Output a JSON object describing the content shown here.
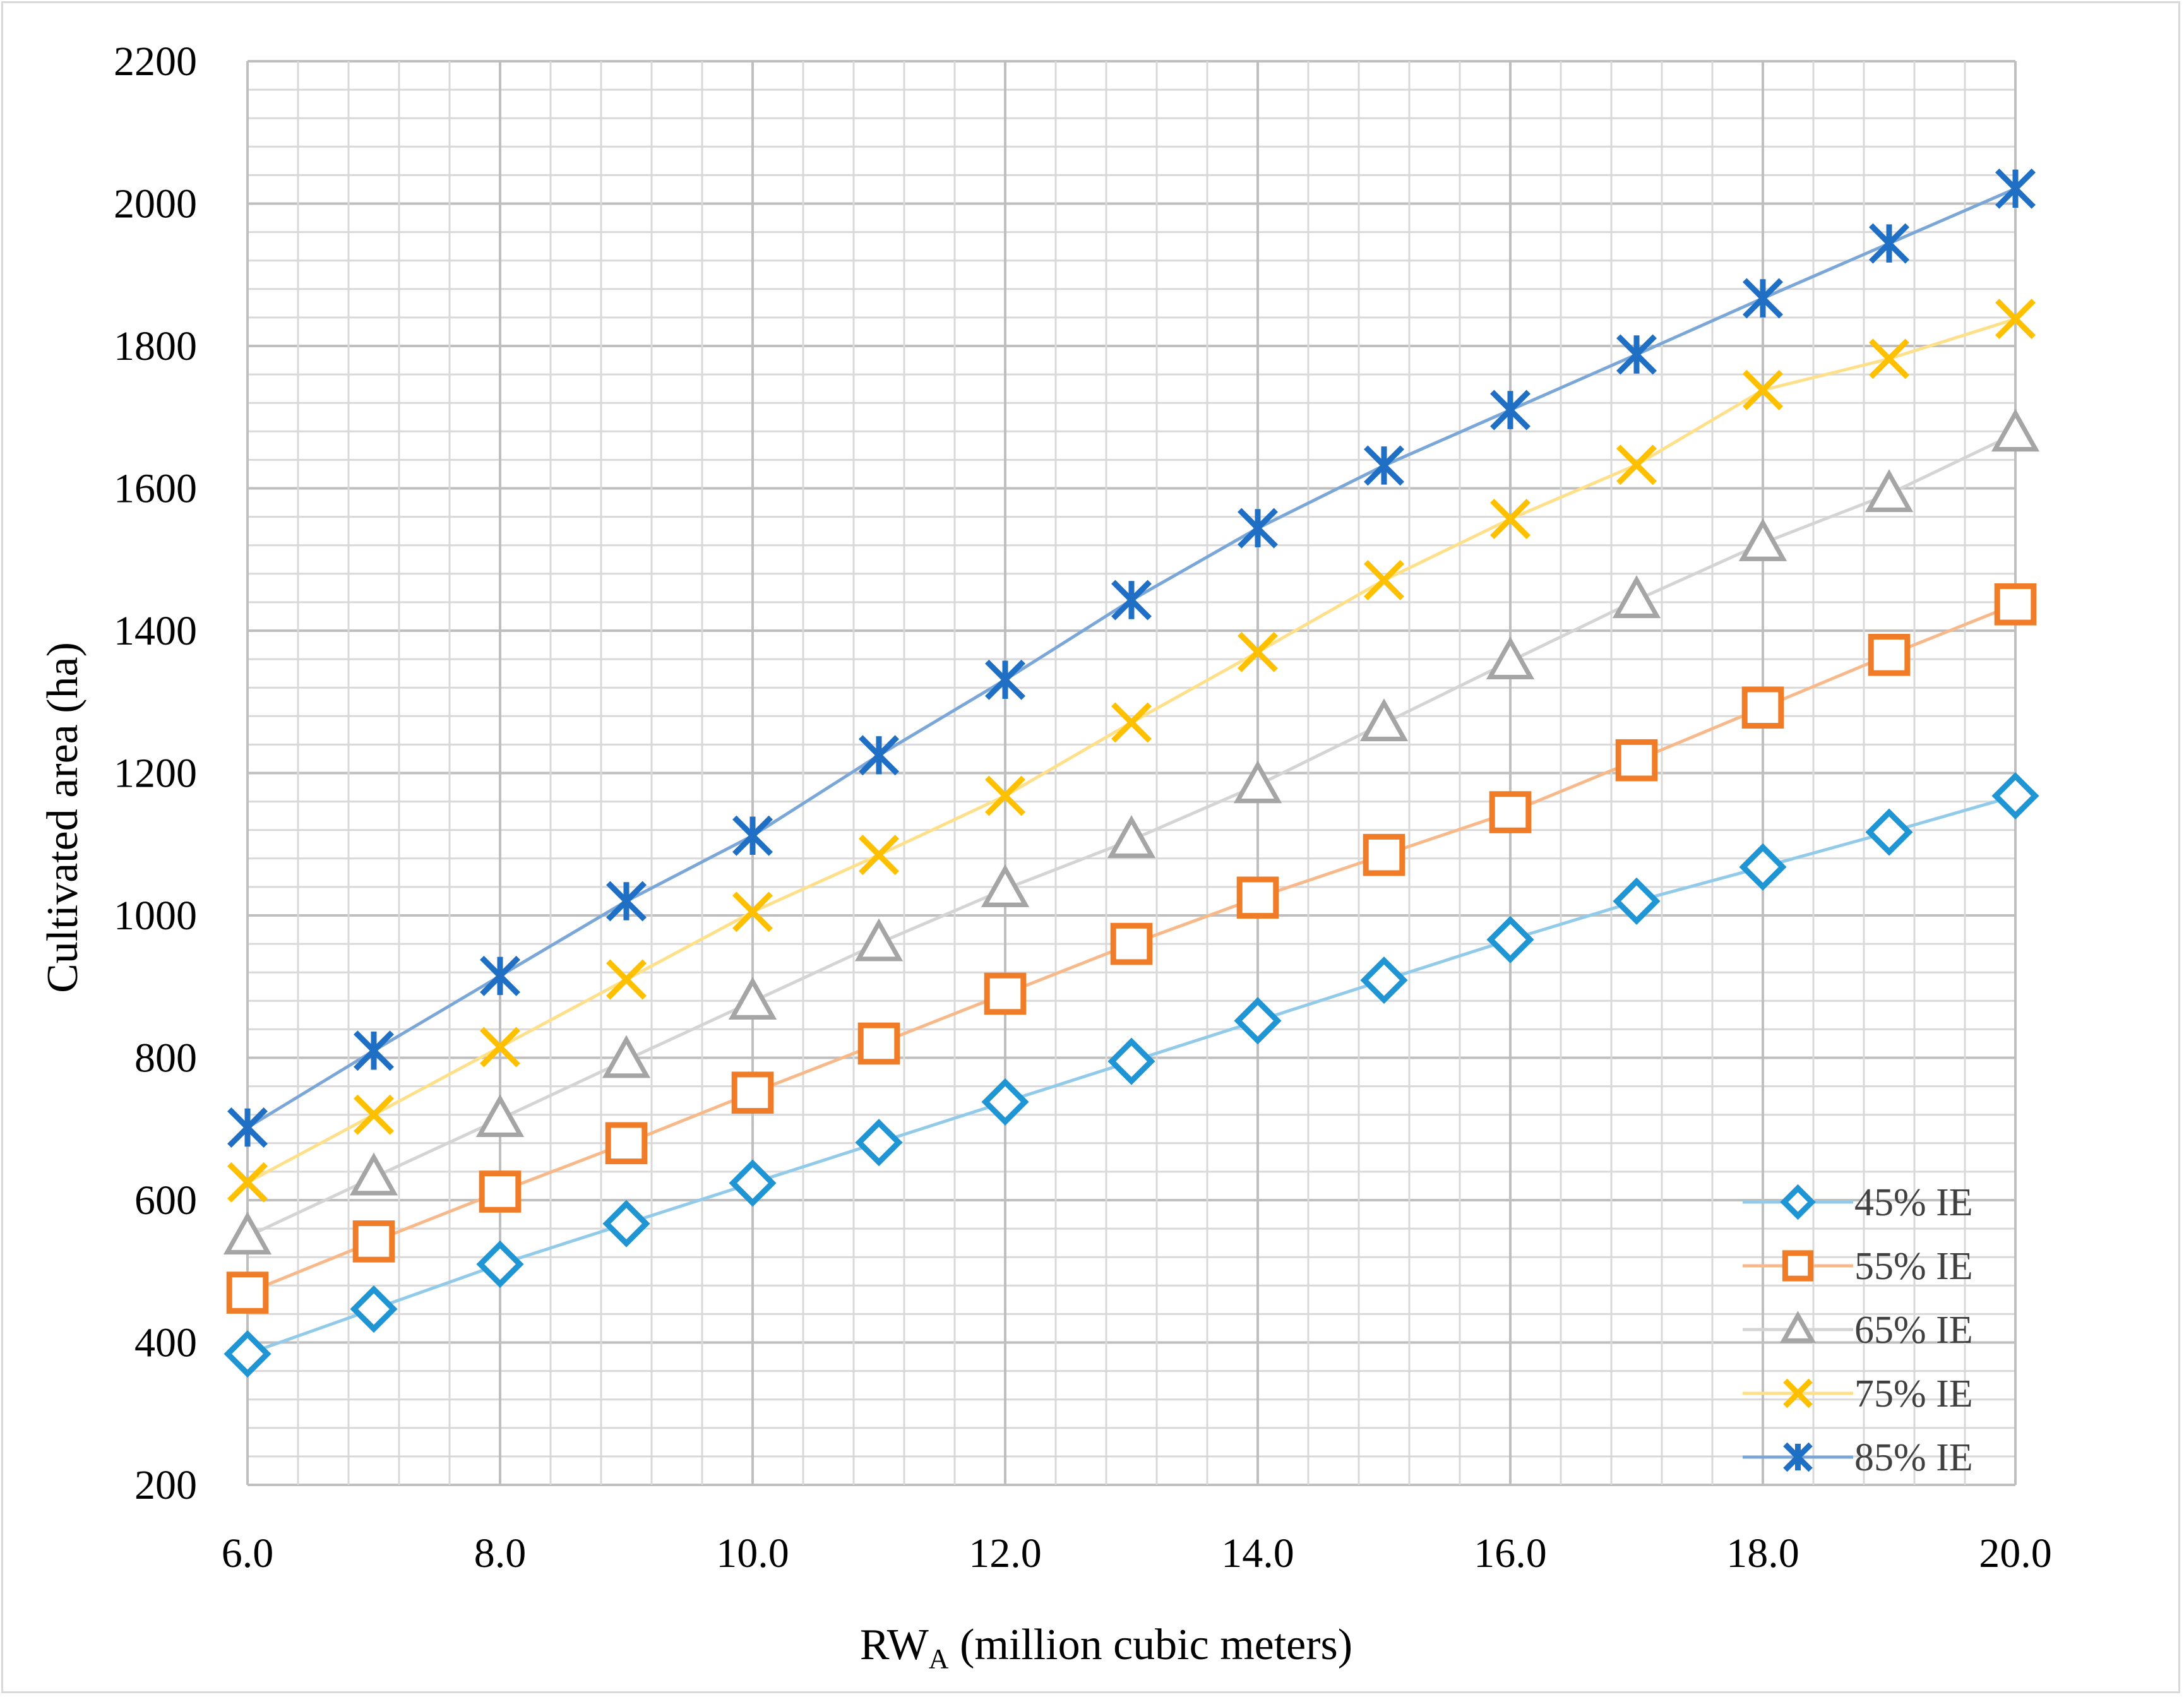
{
  "chart_data": {
    "type": "line",
    "title": "",
    "xlabel": "RW",
    "xlabel_subscript": "A",
    "xlabel_suffix": " (million cubic meters)",
    "ylabel": "Cultivated area (ha)",
    "xlim": [
      6,
      20
    ],
    "ylim": [
      200,
      2200
    ],
    "x_ticks": [
      6,
      8,
      10,
      12,
      14,
      16,
      18,
      20
    ],
    "x_tick_labels": [
      "6.0",
      "8.0",
      "10.0",
      "12.0",
      "14.0",
      "16.0",
      "18.0",
      "20.0"
    ],
    "y_ticks": [
      200,
      400,
      600,
      800,
      1000,
      1200,
      1400,
      1600,
      1800,
      2000,
      2200
    ],
    "y_tick_labels": [
      "200",
      "400",
      "600",
      "800",
      "1000",
      "1200",
      "1400",
      "1600",
      "1800",
      "2000",
      "2200"
    ],
    "grid": true,
    "legend_position": "bottom-right",
    "x": [
      6,
      7,
      8,
      9,
      10,
      11,
      12,
      13,
      14,
      15,
      16,
      17,
      18,
      19,
      20
    ],
    "series": [
      {
        "name": "45% IE",
        "marker": "diamond",
        "color": "#1f96d3",
        "line_color": "#92cbea",
        "values": [
          384,
          447,
          510,
          567,
          624,
          681,
          738,
          795,
          852,
          909,
          966,
          1020,
          1068,
          1117,
          1168
        ]
      },
      {
        "name": "55% IE",
        "marker": "square",
        "color": "#f07c27",
        "line_color": "#f8b98a",
        "values": [
          470,
          542,
          612,
          680,
          751,
          820,
          890,
          960,
          1025,
          1085,
          1145,
          1218,
          1292,
          1366,
          1437
        ]
      },
      {
        "name": "65% IE",
        "marker": "triangle",
        "color": "#a5a5a5",
        "line_color": "#d4d4d4",
        "values": [
          549,
          632,
          714,
          797,
          879,
          961,
          1037,
          1106,
          1183,
          1270,
          1357,
          1443,
          1523,
          1592,
          1677
        ]
      },
      {
        "name": "75% IE",
        "marker": "x",
        "color": "#ffc000",
        "line_color": "#ffe08a",
        "values": [
          625,
          720,
          815,
          910,
          1005,
          1085,
          1168,
          1271,
          1370,
          1471,
          1557,
          1633,
          1738,
          1782,
          1838
        ]
      },
      {
        "name": "85% IE",
        "marker": "star",
        "color": "#1f6fc5",
        "line_color": "#7aa6d8",
        "values": [
          702,
          810,
          915,
          1020,
          1112,
          1225,
          1331,
          1443,
          1544,
          1632,
          1710,
          1788,
          1867,
          1944,
          2021
        ]
      }
    ]
  }
}
